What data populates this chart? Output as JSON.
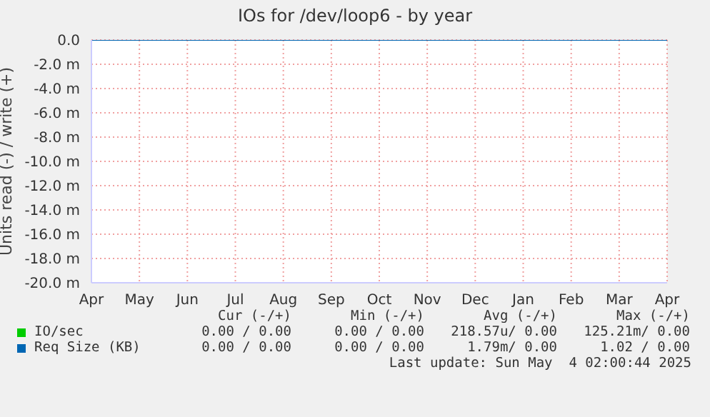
{
  "chart_data": {
    "type": "line",
    "title": "IOs for /dev/loop6 - by year",
    "ylabel": "Units read (-) / write (+)",
    "categories": [
      "Apr",
      "May",
      "Jun",
      "Jul",
      "Aug",
      "Sep",
      "Oct",
      "Nov",
      "Dec",
      "Jan",
      "Feb",
      "Mar",
      "Apr"
    ],
    "series": [
      {
        "name": "IO/sec",
        "color": "#00cc00",
        "values": [
          null,
          null,
          null,
          null,
          null,
          null,
          null,
          null,
          null,
          null,
          null,
          null,
          null
        ]
      },
      {
        "name": "Req Size (KB)",
        "color": "#0066b3",
        "values": [
          0,
          0,
          0,
          0,
          0,
          0,
          0,
          0,
          0,
          0,
          0,
          0,
          0
        ]
      }
    ],
    "ylim": [
      -20,
      0
    ],
    "yticks": [
      {
        "value": 0,
        "label": "0.0"
      },
      {
        "value": -2,
        "label": "-2.0 m"
      },
      {
        "value": -4,
        "label": "-4.0 m"
      },
      {
        "value": -6,
        "label": "-6.0 m"
      },
      {
        "value": -8,
        "label": "-8.0 m"
      },
      {
        "value": -10,
        "label": "-10.0 m"
      },
      {
        "value": -12,
        "label": "-12.0 m"
      },
      {
        "value": -14,
        "label": "-14.0 m"
      },
      {
        "value": -16,
        "label": "-16.0 m"
      },
      {
        "value": -18,
        "label": "-18.0 m"
      },
      {
        "value": -20,
        "label": "-20.0 m"
      }
    ],
    "grid": true,
    "legend": "bottom",
    "marker": "none",
    "annotations": [
      "Cur (-/+)",
      "Min (-/+)",
      "Avg (-/+)",
      "Max (-/+)",
      "0.00 / 0.00",
      "0.00 / 0.00",
      "218.57u/ 0.00",
      "125.21m/ 0.00",
      "0.00 / 0.00",
      "0.00 / 0.00",
      "1.79m/ 0.00",
      "1.02 / 0.00",
      "Last update: Sun May  4 02:00:44 2025"
    ]
  }
}
